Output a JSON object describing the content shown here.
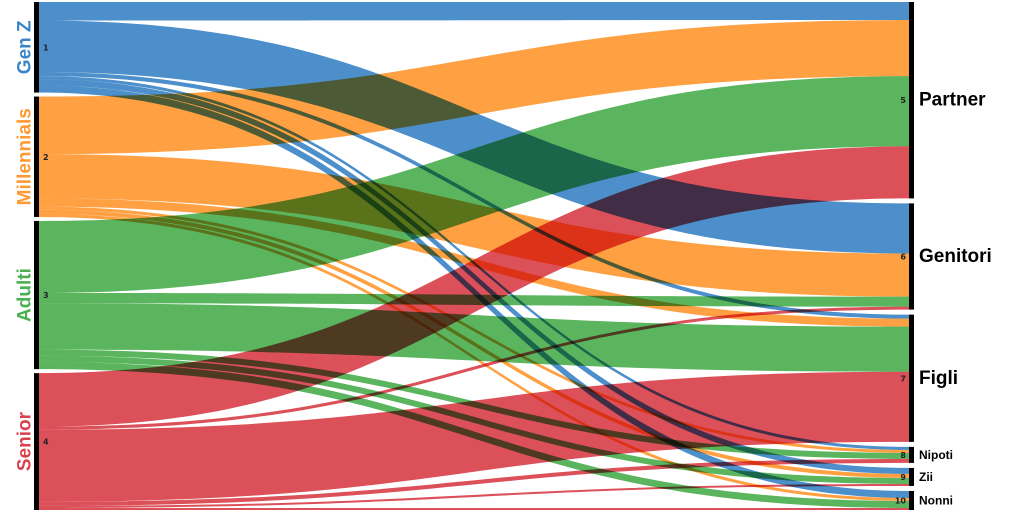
{
  "colors": {
    "gen_z": "#3d85c6",
    "millennials": "#ff9933",
    "adulti": "#4caf50",
    "senior": "#d9414b",
    "node_bar": "#000000"
  },
  "left_nodes": [
    {
      "key": "gen_z",
      "id": "1",
      "label": "Gen Z"
    },
    {
      "key": "millennials",
      "id": "2",
      "label": "Millennials"
    },
    {
      "key": "adulti",
      "id": "3",
      "label": "Adulti"
    },
    {
      "key": "senior",
      "id": "4",
      "label": "Senior"
    }
  ],
  "right_nodes": [
    {
      "key": "partner",
      "id": "5",
      "label": "Partner"
    },
    {
      "key": "genitori",
      "id": "6",
      "label": "Genitori"
    },
    {
      "key": "figli",
      "id": "7",
      "label": "Figli"
    },
    {
      "key": "nipoti",
      "id": "8",
      "label": "Nipoti"
    },
    {
      "key": "zii",
      "id": "9",
      "label": "Zii"
    },
    {
      "key": "nonni",
      "id": "10",
      "label": "Nonni"
    }
  ],
  "chart_data": {
    "type": "sankey",
    "sources": [
      "Gen Z",
      "Millennials",
      "Adulti",
      "Senior"
    ],
    "targets": [
      "Partner",
      "Genitori",
      "Figli",
      "Nipoti",
      "Zii",
      "Nonni"
    ],
    "flows": [
      {
        "source": "Gen Z",
        "target": "Partner",
        "value": 18
      },
      {
        "source": "Gen Z",
        "target": "Genitori",
        "value": 50
      },
      {
        "source": "Gen Z",
        "target": "Figli",
        "value": 4
      },
      {
        "source": "Gen Z",
        "target": "Nipoti",
        "value": 3
      },
      {
        "source": "Gen Z",
        "target": "Zii",
        "value": 6
      },
      {
        "source": "Gen Z",
        "target": "Nonni",
        "value": 7
      },
      {
        "source": "Millennials",
        "target": "Partner",
        "value": 56
      },
      {
        "source": "Millennials",
        "target": "Genitori",
        "value": 43
      },
      {
        "source": "Millennials",
        "target": "Figli",
        "value": 8
      },
      {
        "source": "Millennials",
        "target": "Nipoti",
        "value": 3
      },
      {
        "source": "Millennials",
        "target": "Zii",
        "value": 4
      },
      {
        "source": "Millennials",
        "target": "Nonni",
        "value": 3
      },
      {
        "source": "Adulti",
        "target": "Partner",
        "value": 70
      },
      {
        "source": "Adulti",
        "target": "Genitori",
        "value": 10
      },
      {
        "source": "Adulti",
        "target": "Figli",
        "value": 45
      },
      {
        "source": "Adulti",
        "target": "Nipoti",
        "value": 6
      },
      {
        "source": "Adulti",
        "target": "Zii",
        "value": 6
      },
      {
        "source": "Adulti",
        "target": "Nonni",
        "value": 7
      },
      {
        "source": "Senior",
        "target": "Partner",
        "value": 52
      },
      {
        "source": "Senior",
        "target": "Genitori",
        "value": 3
      },
      {
        "source": "Senior",
        "target": "Figli",
        "value": 70
      },
      {
        "source": "Senior",
        "target": "Nipoti",
        "value": 4
      },
      {
        "source": "Senior",
        "target": "Zii",
        "value": 2
      },
      {
        "source": "Senior",
        "target": "Nonni",
        "value": 2
      }
    ]
  }
}
